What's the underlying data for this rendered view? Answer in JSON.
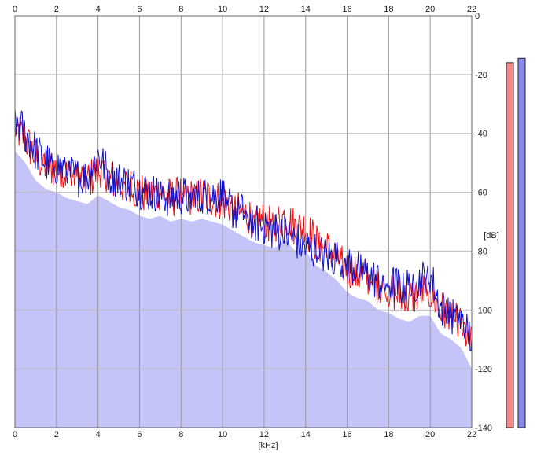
{
  "chart_data": {
    "type": "area",
    "title": "",
    "xlabel": "[kHz]",
    "ylabel": "[dB]",
    "xlim": [
      0,
      22
    ],
    "ylim": [
      -140,
      0
    ],
    "x_ticks": [
      "0",
      "2",
      "4",
      "6",
      "8",
      "10",
      "12",
      "14",
      "16",
      "18",
      "20",
      "22"
    ],
    "y_ticks": [
      "0",
      "-20",
      "-40",
      "-60",
      "-80",
      "-100",
      "-120",
      "-140"
    ],
    "grid": true,
    "series": [
      {
        "channel": "left",
        "color": "#ee1111",
        "x": [
          0,
          0.5,
          1,
          1.5,
          2,
          2.5,
          3,
          3.5,
          4,
          4.5,
          5,
          5.5,
          6,
          6.5,
          7,
          7.5,
          8,
          8.5,
          9,
          9.5,
          10,
          10.5,
          11,
          11.5,
          12,
          12.5,
          13,
          13.5,
          14,
          14.5,
          15,
          15.5,
          16,
          16.5,
          17,
          17.5,
          18,
          18.5,
          19,
          19.5,
          20,
          20.5,
          21,
          21.5,
          22
        ],
        "values": [
          -38,
          -42,
          -48,
          -51,
          -52,
          -54,
          -55,
          -56,
          -53,
          -55,
          -57,
          -58,
          -60,
          -61,
          -60,
          -62,
          -61,
          -62,
          -61,
          -62,
          -63,
          -65,
          -67,
          -69,
          -70,
          -71,
          -68,
          -72,
          -72,
          -77,
          -79,
          -82,
          -86,
          -88,
          -89,
          -92,
          -93,
          -95,
          -96,
          -94,
          -94,
          -100,
          -102,
          -105,
          -112
        ]
      },
      {
        "channel": "right",
        "color": "#1111cc",
        "x": [
          0,
          0.5,
          1,
          1.5,
          2,
          2.5,
          3,
          3.5,
          4,
          4.5,
          5,
          5.5,
          6,
          6.5,
          7,
          7.5,
          8,
          8.5,
          9,
          9.5,
          10,
          10.5,
          11,
          11.5,
          12,
          12.5,
          13,
          13.5,
          14,
          14.5,
          15,
          15.5,
          16,
          16.5,
          17,
          17.5,
          18,
          18.5,
          19,
          19.5,
          20,
          20.5,
          21,
          21.5,
          22
        ],
        "values": [
          -35,
          -40,
          -46,
          -50,
          -51,
          -53,
          -55,
          -55,
          -47,
          -54,
          -56,
          -57,
          -59,
          -60,
          -61,
          -62,
          -61,
          -62,
          -62,
          -61,
          -61,
          -66,
          -67,
          -70,
          -72,
          -73,
          -74,
          -76,
          -79,
          -80,
          -82,
          -82,
          -84,
          -86,
          -88,
          -90,
          -91,
          -92,
          -92,
          -90,
          -88,
          -99,
          -102,
          -104,
          -110
        ]
      }
    ],
    "area_fill_color": "#c4c4f8",
    "level_meters": [
      {
        "channel": "left",
        "color": "#f88888",
        "level_db": -16
      },
      {
        "channel": "right",
        "color": "#8888ee",
        "level_db": -14.5
      }
    ]
  }
}
